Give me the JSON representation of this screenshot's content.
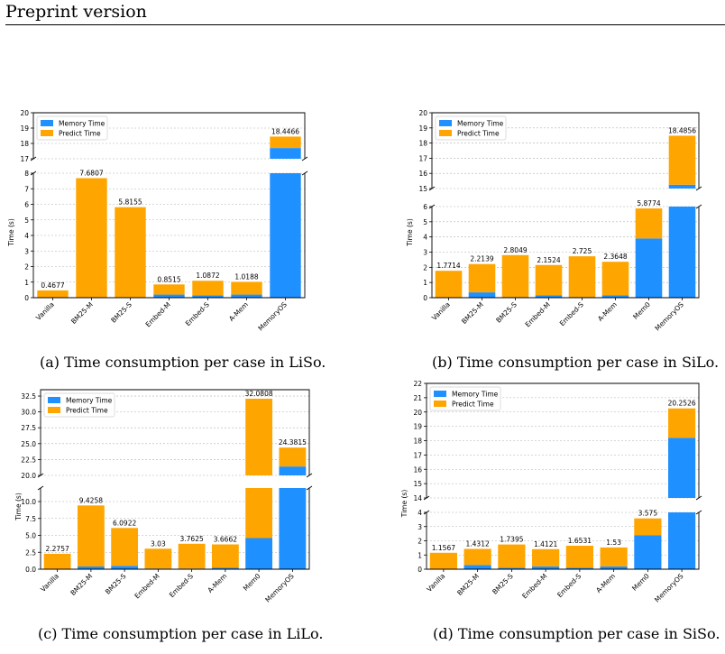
{
  "header": {
    "text": "Preprint version"
  },
  "colors": {
    "memory": "#1e90ff",
    "predict": "#ffa500",
    "grid": "#b0b0b0"
  },
  "legend": {
    "memory": "Memory Time",
    "predict": "Predict Time",
    "placement": "top-left"
  },
  "chart_data": [
    {
      "type": "bar",
      "stacked": true,
      "broken_y_axis": true,
      "caption": "(a) Time consumption per case in LiSo.",
      "ylabel": "Time (s)",
      "categories": [
        "Vanilla",
        "BM25-M",
        "BM25-S",
        "Embed-M",
        "Embed-S",
        "A-Mem",
        "MemoryOS"
      ],
      "series": [
        {
          "name": "Memory Time",
          "values": [
            0,
            0,
            0,
            0.2,
            0.15,
            0.2,
            17.7
          ]
        },
        {
          "name": "Predict Time",
          "values": [
            0.4677,
            7.6807,
            5.8155,
            0.6515,
            0.9372,
            0.8188,
            0.7466
          ]
        }
      ],
      "totals_labels": [
        "0.4677",
        "7.6807",
        "5.8155",
        "0.8515",
        "1.0872",
        "1.0188",
        "18.4466"
      ],
      "upper_ylim": [
        17,
        20
      ],
      "upper_ticks": [
        17,
        18,
        19,
        20
      ],
      "lower_ylim": [
        0,
        8
      ],
      "lower_ticks": [
        0,
        1,
        2,
        3,
        4,
        5,
        6,
        7,
        8
      ],
      "grid": true
    },
    {
      "type": "bar",
      "stacked": true,
      "broken_y_axis": true,
      "caption": "(b) Time consumption per case in SiLo.",
      "ylabel": "Time (s)",
      "categories": [
        "Vanilla",
        "BM25-M",
        "BM25-S",
        "Embed-M",
        "Embed-S",
        "A-Mem",
        "Mem0",
        "MemoryOS"
      ],
      "series": [
        {
          "name": "Memory Time",
          "values": [
            0,
            0.35,
            0.05,
            0.15,
            0.05,
            0.15,
            3.9,
            15.25
          ]
        },
        {
          "name": "Predict Time",
          "values": [
            1.7714,
            1.8639,
            2.7549,
            2.0024,
            2.675,
            2.2148,
            1.9774,
            3.2356
          ]
        }
      ],
      "totals_labels": [
        "1.7714",
        "2.2139",
        "2.8049",
        "2.1524",
        "2.725",
        "2.3648",
        "5.8774",
        "18.4856"
      ],
      "upper_ylim": [
        15,
        20
      ],
      "upper_ticks": [
        15,
        16,
        17,
        18,
        19,
        20
      ],
      "lower_ylim": [
        0,
        6
      ],
      "lower_ticks": [
        0,
        1,
        2,
        3,
        4,
        5,
        6
      ],
      "grid": true
    },
    {
      "type": "bar",
      "stacked": true,
      "broken_y_axis": true,
      "caption": "(c) Time consumption per case in LiLo.",
      "ylabel": "Time (s)",
      "categories": [
        "Vanilla",
        "BM25-M",
        "BM25-S",
        "Embed-M",
        "Embed-S",
        "A-Mem",
        "Mem0",
        "MemoryOS"
      ],
      "series": [
        {
          "name": "Memory Time",
          "values": [
            0,
            0.4,
            0.5,
            0.1,
            0.1,
            0.2,
            4.6,
            21.4
          ]
        },
        {
          "name": "Predict Time",
          "values": [
            2.2757,
            9.0258,
            5.5922,
            2.93,
            3.6625,
            3.4662,
            27.4808,
            2.9815
          ]
        }
      ],
      "totals_labels": [
        "2.2757",
        "9.4258",
        "6.0922",
        "3.03",
        "3.7625",
        "3.6662",
        "32.0808",
        "24.3815"
      ],
      "upper_ylim": [
        20,
        33.5
      ],
      "upper_ticks": [
        20.0,
        22.5,
        25.0,
        27.5,
        30.0,
        32.5
      ],
      "upper_tick_labels": [
        "20.0",
        "22.5",
        "25.0",
        "27.5",
        "30.0",
        "32.5"
      ],
      "lower_ylim": [
        0,
        12
      ],
      "lower_ticks": [
        0,
        2.5,
        5,
        7.5,
        10
      ],
      "lower_tick_labels": [
        "0.0",
        "2.5",
        "5.0",
        "7.5",
        "10.0"
      ],
      "grid": true
    },
    {
      "type": "bar",
      "stacked": true,
      "broken_y_axis": true,
      "caption": "(d) Time consumption per case in SiSo.",
      "ylabel": "Time (s)",
      "categories": [
        "Vanilla",
        "BM25-M",
        "BM25-S",
        "Embed-M",
        "Embed-S",
        "A-Mem",
        "Mem0",
        "MemoryOS"
      ],
      "series": [
        {
          "name": "Memory Time",
          "values": [
            0,
            0.3,
            0.1,
            0.2,
            0.1,
            0.2,
            2.4,
            18.2
          ]
        },
        {
          "name": "Predict Time",
          "values": [
            1.1567,
            1.1312,
            1.6395,
            1.2121,
            1.5531,
            1.33,
            1.175,
            2.0526
          ]
        }
      ],
      "totals_labels": [
        "1.1567",
        "1.4312",
        "1.7395",
        "1.4121",
        "1.6531",
        "1.53",
        "3.575",
        "20.2526"
      ],
      "upper_ylim": [
        14,
        22
      ],
      "upper_ticks": [
        14,
        15,
        16,
        17,
        18,
        19,
        20,
        21,
        22
      ],
      "lower_ylim": [
        0,
        4
      ],
      "lower_ticks": [
        0,
        1,
        2,
        3,
        4
      ],
      "grid": true
    }
  ]
}
